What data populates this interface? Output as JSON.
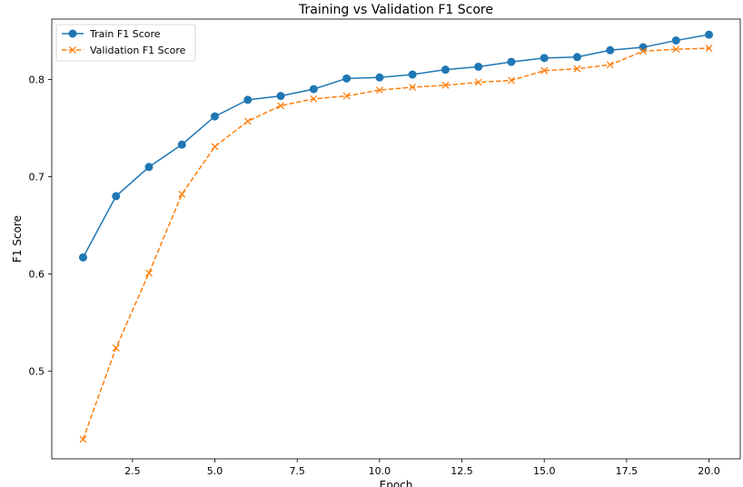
{
  "chart_data": {
    "type": "line",
    "title": "Training vs Validation F1 Score",
    "xlabel": "Epoch",
    "ylabel": "F1 Score",
    "xlim": [
      0.05,
      20.95
    ],
    "ylim": [
      0.41,
      0.862
    ],
    "xticks": [
      2.5,
      5.0,
      7.5,
      10.0,
      12.5,
      15.0,
      17.5,
      20.0
    ],
    "xtick_labels": [
      "2.5",
      "5.0",
      "7.5",
      "10.0",
      "12.5",
      "15.0",
      "17.5",
      "20.0"
    ],
    "yticks": [
      0.5,
      0.6,
      0.7,
      0.8
    ],
    "ytick_labels": [
      "0.5",
      "0.6",
      "0.7",
      "0.8"
    ],
    "grid": false,
    "legend_position": "top-left",
    "x": [
      1,
      2,
      3,
      4,
      5,
      6,
      7,
      8,
      9,
      10,
      11,
      12,
      13,
      14,
      15,
      16,
      17,
      18,
      19,
      20
    ],
    "series": [
      {
        "name": "Train F1 Score",
        "color": "#1f77b4",
        "line_style": "solid",
        "marker": "circle",
        "values": [
          0.617,
          0.68,
          0.71,
          0.733,
          0.762,
          0.779,
          0.783,
          0.79,
          0.801,
          0.802,
          0.805,
          0.81,
          0.813,
          0.818,
          0.822,
          0.823,
          0.83,
          0.833,
          0.84,
          0.846
        ]
      },
      {
        "name": "Validation F1 Score",
        "color": "#ff7f0e",
        "line_style": "dashed",
        "marker": "x",
        "values": [
          0.43,
          0.524,
          0.601,
          0.682,
          0.731,
          0.757,
          0.773,
          0.78,
          0.783,
          0.789,
          0.792,
          0.794,
          0.797,
          0.799,
          0.809,
          0.811,
          0.815,
          0.829,
          0.831,
          0.832
        ]
      }
    ]
  }
}
